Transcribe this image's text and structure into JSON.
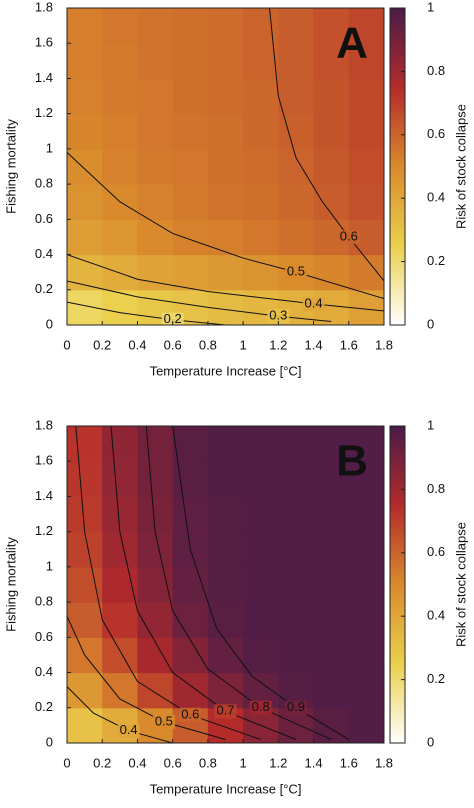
{
  "chart_data": [
    {
      "type": "heatmap",
      "panel_label": "A",
      "xlabel": "Temperature Increase [°C]",
      "ylabel": "Fishing mortality",
      "colorbar_label": "Risk of stock collapse",
      "xlim": [
        0,
        1.8
      ],
      "ylim": [
        0,
        1.8
      ],
      "clim": [
        0,
        1
      ],
      "xticks": [
        0,
        0.2,
        0.4,
        0.6,
        0.8,
        1,
        1.2,
        1.4,
        1.6,
        1.8
      ],
      "yticks": [
        0,
        0.2,
        0.4,
        0.6,
        0.8,
        1,
        1.2,
        1.4,
        1.6,
        1.8
      ],
      "cticks": [
        0,
        0.2,
        0.4,
        0.6,
        0.8,
        1
      ],
      "colormap": [
        "#ffffff",
        "#ead04c",
        "#d98a2c",
        "#b42b2b",
        "#4a1c48"
      ],
      "x_bins": [
        0,
        0.2,
        0.4,
        0.6,
        0.8,
        1,
        1.2,
        1.4,
        1.6,
        1.8
      ],
      "y_bins": [
        0,
        0.2,
        0.4,
        0.6,
        0.8,
        1,
        1.2,
        1.4,
        1.6,
        1.8
      ],
      "z": [
        [
          0.22,
          0.25,
          0.28,
          0.3,
          0.32,
          0.34,
          0.36,
          0.38,
          0.42
        ],
        [
          0.35,
          0.38,
          0.41,
          0.43,
          0.45,
          0.47,
          0.49,
          0.51,
          0.54
        ],
        [
          0.43,
          0.46,
          0.5,
          0.52,
          0.53,
          0.55,
          0.57,
          0.59,
          0.62
        ],
        [
          0.47,
          0.5,
          0.52,
          0.54,
          0.56,
          0.57,
          0.59,
          0.62,
          0.65
        ],
        [
          0.49,
          0.52,
          0.54,
          0.55,
          0.57,
          0.58,
          0.6,
          0.63,
          0.66
        ],
        [
          0.51,
          0.53,
          0.55,
          0.56,
          0.57,
          0.59,
          0.61,
          0.64,
          0.67
        ],
        [
          0.52,
          0.54,
          0.55,
          0.57,
          0.58,
          0.59,
          0.62,
          0.64,
          0.67
        ],
        [
          0.53,
          0.54,
          0.56,
          0.57,
          0.58,
          0.6,
          0.62,
          0.65,
          0.68
        ],
        [
          0.53,
          0.55,
          0.56,
          0.57,
          0.58,
          0.6,
          0.62,
          0.65,
          0.68
        ]
      ],
      "contours": [
        {
          "level": 0.2,
          "x": [
            0,
            0.3,
            0.6,
            0.9
          ],
          "y": [
            0.13,
            0.07,
            0.03,
            0
          ]
        },
        {
          "level": 0.3,
          "x": [
            0,
            0.4,
            0.8,
            1.2,
            1.5
          ],
          "y": [
            0.25,
            0.16,
            0.1,
            0.05,
            0.02
          ]
        },
        {
          "level": 0.4,
          "x": [
            0,
            0.4,
            0.8,
            1.4,
            1.8
          ],
          "y": [
            0.4,
            0.26,
            0.19,
            0.12,
            0.08
          ]
        },
        {
          "level": 0.5,
          "x": [
            0,
            0.3,
            0.6,
            1,
            1.3,
            1.8
          ],
          "y": [
            0.98,
            0.7,
            0.52,
            0.38,
            0.3,
            0.15
          ]
        },
        {
          "level": 0.6,
          "x": [
            1.15,
            1.2,
            1.3,
            1.45,
            1.6,
            1.8
          ],
          "y": [
            1.8,
            1.3,
            0.95,
            0.7,
            0.5,
            0.25
          ]
        }
      ]
    },
    {
      "type": "heatmap",
      "panel_label": "B",
      "xlabel": "Temperature Increase [°C]",
      "ylabel": "Fishing mortality",
      "colorbar_label": "Risk of stock collapse",
      "xlim": [
        0,
        1.8
      ],
      "ylim": [
        0,
        1.8
      ],
      "clim": [
        0,
        1
      ],
      "xticks": [
        0,
        0.2,
        0.4,
        0.6,
        0.8,
        1,
        1.2,
        1.4,
        1.6,
        1.8
      ],
      "yticks": [
        0,
        0.2,
        0.4,
        0.6,
        0.8,
        1,
        1.2,
        1.4,
        1.6,
        1.8
      ],
      "cticks": [
        0,
        0.2,
        0.4,
        0.6,
        0.8,
        1
      ],
      "colormap": [
        "#ffffff",
        "#ead04c",
        "#d98a2c",
        "#b42b2b",
        "#4a1c48"
      ],
      "x_bins": [
        0,
        0.2,
        0.4,
        0.6,
        0.8,
        1,
        1.2,
        1.4,
        1.6,
        1.8
      ],
      "y_bins": [
        0,
        0.2,
        0.4,
        0.6,
        0.8,
        1,
        1.2,
        1.4,
        1.6,
        1.8
      ],
      "z": [
        [
          0.3,
          0.38,
          0.5,
          0.62,
          0.75,
          0.85,
          0.92,
          0.96,
          0.98
        ],
        [
          0.45,
          0.55,
          0.68,
          0.8,
          0.88,
          0.94,
          0.97,
          0.98,
          0.98
        ],
        [
          0.55,
          0.66,
          0.78,
          0.87,
          0.94,
          0.97,
          0.98,
          0.98,
          0.98
        ],
        [
          0.62,
          0.73,
          0.83,
          0.92,
          0.96,
          0.98,
          0.98,
          0.98,
          0.98
        ],
        [
          0.66,
          0.77,
          0.86,
          0.94,
          0.97,
          0.98,
          0.98,
          0.98,
          0.98
        ],
        [
          0.69,
          0.8,
          0.88,
          0.95,
          0.97,
          0.98,
          0.98,
          0.98,
          0.98
        ],
        [
          0.71,
          0.82,
          0.89,
          0.95,
          0.97,
          0.98,
          0.98,
          0.98,
          0.98
        ],
        [
          0.72,
          0.83,
          0.9,
          0.96,
          0.98,
          0.98,
          0.98,
          0.98,
          0.98
        ],
        [
          0.73,
          0.84,
          0.9,
          0.96,
          0.98,
          0.98,
          0.98,
          0.98,
          0.98
        ]
      ],
      "contours": [
        {
          "level": 0.4,
          "x": [
            0,
            0.15,
            0.35,
            0.6
          ],
          "y": [
            0.32,
            0.17,
            0.07,
            0
          ]
        },
        {
          "level": 0.5,
          "x": [
            0,
            0.1,
            0.3,
            0.55,
            0.9
          ],
          "y": [
            0.72,
            0.5,
            0.25,
            0.12,
            0.02
          ]
        },
        {
          "level": 0.6,
          "x": [
            0.05,
            0.1,
            0.2,
            0.4,
            0.7,
            1.1
          ],
          "y": [
            1.8,
            1.2,
            0.7,
            0.35,
            0.16,
            0.02
          ]
        },
        {
          "level": 0.7,
          "x": [
            0.25,
            0.3,
            0.4,
            0.6,
            0.9,
            1.3
          ],
          "y": [
            1.8,
            1.2,
            0.75,
            0.4,
            0.18,
            0.02
          ]
        },
        {
          "level": 0.8,
          "x": [
            0.45,
            0.5,
            0.6,
            0.8,
            1.1,
            1.5
          ],
          "y": [
            1.8,
            1.2,
            0.75,
            0.42,
            0.2,
            0.02
          ]
        },
        {
          "level": 0.9,
          "x": [
            0.6,
            0.7,
            0.85,
            1.05,
            1.3,
            1.6
          ],
          "y": [
            1.8,
            1.1,
            0.65,
            0.38,
            0.2,
            0.02
          ]
        }
      ]
    }
  ]
}
